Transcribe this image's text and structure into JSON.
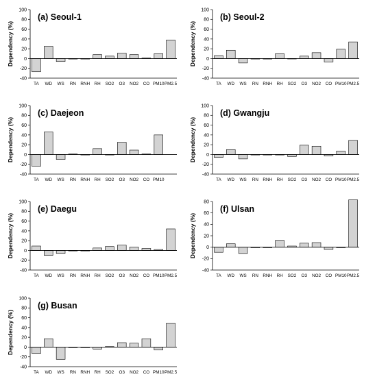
{
  "axis_title": "Dependency (%)",
  "colors": {
    "bar_fill": "#d3d3d3",
    "bar_stroke": "#000000",
    "axis": "#000000"
  },
  "chart_data": [
    {
      "type": "bar",
      "title": "(a) Seoul-1",
      "ylabel": "Dependency (%)",
      "ylim": [
        -40,
        100
      ],
      "yticks": [
        -40,
        -20,
        0,
        20,
        40,
        60,
        80,
        100
      ],
      "categories": [
        "TA",
        "WD",
        "WS",
        "RN",
        "RNH",
        "RH",
        "SO2",
        "O3",
        "NO2",
        "CO",
        "PM10",
        "PM2.5"
      ],
      "values": [
        -27,
        25,
        -6,
        -1,
        -1,
        8,
        5,
        11,
        8,
        1,
        10,
        38
      ]
    },
    {
      "type": "bar",
      "title": "(b) Seoul-2",
      "ylabel": "Dependency (%)",
      "ylim": [
        -40,
        100
      ],
      "yticks": [
        -40,
        -20,
        0,
        20,
        40,
        60,
        80,
        100
      ],
      "categories": [
        "TA",
        "WD",
        "WS",
        "RN",
        "RNH",
        "RH",
        "SO2",
        "O3",
        "NO2",
        "CO",
        "PM10",
        "PM2.5"
      ],
      "values": [
        6,
        17,
        -9,
        -1,
        -1,
        10,
        0,
        5,
        12,
        -7,
        19,
        34
      ]
    },
    {
      "type": "bar",
      "title": "(c) Daejeon",
      "ylabel": "Dependency (%)",
      "ylim": [
        -40,
        100
      ],
      "yticks": [
        -40,
        -20,
        0,
        20,
        40,
        60,
        80,
        100
      ],
      "categories": [
        "TA",
        "WD",
        "WS",
        "RN",
        "RNH",
        "RH",
        "SO2",
        "O3",
        "NO2",
        "CO",
        "PM10"
      ],
      "values": [
        -24,
        46,
        -10,
        1,
        -1,
        12,
        -1,
        25,
        9,
        1,
        40
      ]
    },
    {
      "type": "bar",
      "title": "(d) Gwangju",
      "ylabel": "Dependency (%)",
      "ylim": [
        -40,
        100
      ],
      "yticks": [
        -40,
        -20,
        0,
        20,
        40,
        60,
        80,
        100
      ],
      "categories": [
        "TA",
        "WD",
        "WS",
        "RN",
        "RNH",
        "RH",
        "SO2",
        "O3",
        "NO2",
        "CO",
        "PM10",
        "PM2.5"
      ],
      "values": [
        -6,
        10,
        -9,
        -1,
        -1,
        -1,
        -4,
        19,
        17,
        -3,
        7,
        29
      ]
    },
    {
      "type": "bar",
      "title": "(e) Daegu",
      "ylabel": "Dependency (%)",
      "ylim": [
        -40,
        100
      ],
      "yticks": [
        -40,
        -20,
        0,
        20,
        40,
        60,
        80,
        100
      ],
      "categories": [
        "TA",
        "WD",
        "WS",
        "RN",
        "RNH",
        "RH",
        "SO2",
        "O3",
        "NO2",
        "CO",
        "PM10",
        "PM2.5"
      ],
      "values": [
        9,
        -10,
        -6,
        -1,
        -1,
        5,
        8,
        11,
        7,
        4,
        2,
        44
      ]
    },
    {
      "type": "bar",
      "title": "(f) Ulsan",
      "ylabel": "Dependency (%)",
      "ylim": [
        -40,
        80
      ],
      "yticks": [
        -40,
        -20,
        0,
        20,
        40,
        60,
        80
      ],
      "categories": [
        "TA",
        "WD",
        "WS",
        "RN",
        "RNH",
        "RH",
        "SO2",
        "O3",
        "NO2",
        "CO",
        "PM10",
        "PM2.5"
      ],
      "values": [
        -9,
        6,
        -11,
        -1,
        -1,
        12,
        2,
        7,
        8,
        -4,
        -1,
        83
      ]
    },
    {
      "type": "bar",
      "title": "(g) Busan",
      "ylabel": "Dependency (%)",
      "ylim": [
        -40,
        100
      ],
      "yticks": [
        -40,
        -20,
        0,
        20,
        40,
        60,
        80,
        100
      ],
      "categories": [
        "TA",
        "WD",
        "WS",
        "RN",
        "RNH",
        "RH",
        "SO2",
        "O3",
        "NO2",
        "CO",
        "PM10",
        "PM2.5"
      ],
      "values": [
        -13,
        17,
        -25,
        -1,
        -1,
        -4,
        1,
        9,
        8,
        17,
        -6,
        49
      ]
    }
  ]
}
